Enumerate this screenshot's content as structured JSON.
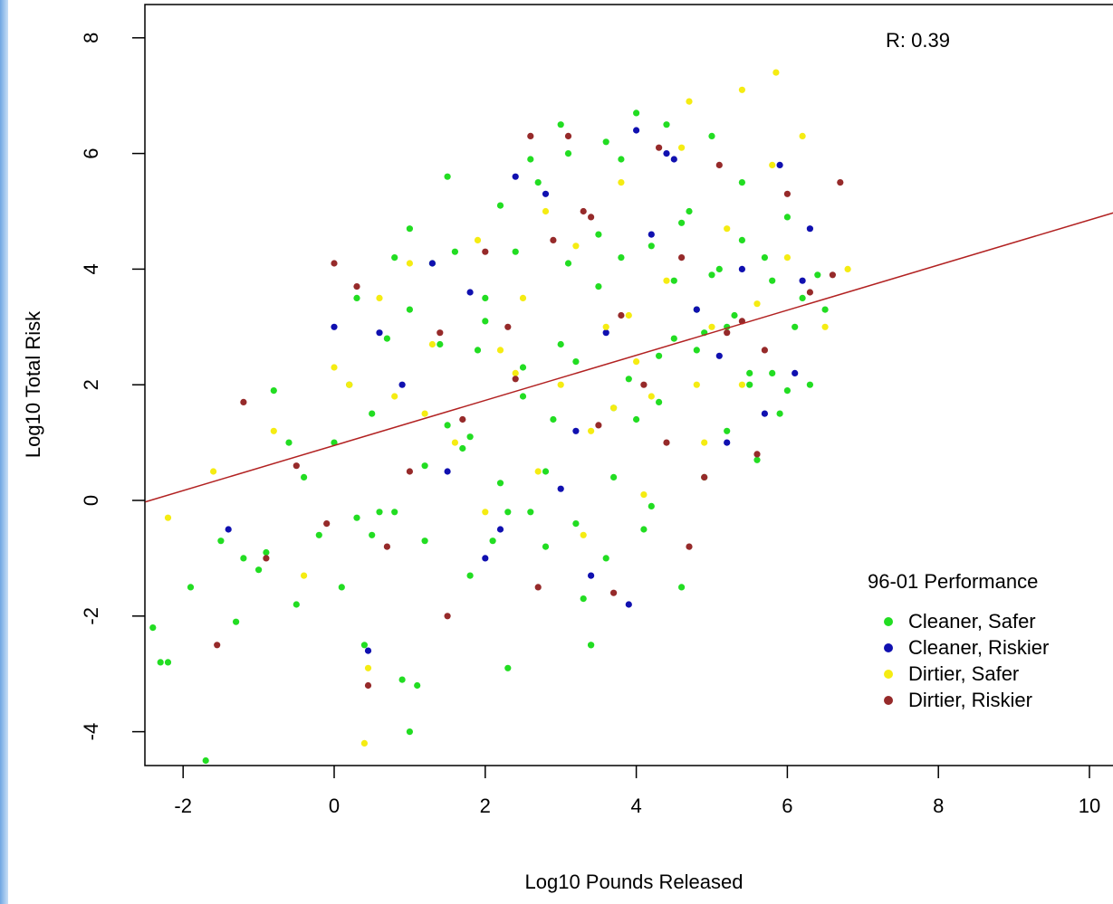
{
  "chart_data": {
    "type": "scatter",
    "xlabel": "Log10 Pounds Released",
    "ylabel": "Log10 Total Risk",
    "xlim": [
      -2.5,
      10.5
    ],
    "ylim": [
      -4.5,
      8.5
    ],
    "x_ticks": [
      -2,
      0,
      2,
      4,
      6,
      8,
      10
    ],
    "y_ticks": [
      -4,
      -2,
      0,
      2,
      4,
      6,
      8
    ],
    "annotation": "R:  0.39",
    "regression_line": {
      "intercept": 0.95,
      "slope": 0.39
    },
    "legend": {
      "title": "96-01 Performance",
      "placement": "bottom-right",
      "entries": [
        {
          "name": "Cleaner, Safer",
          "color": "#22dd22"
        },
        {
          "name": "Cleaner, Riskier",
          "color": "#1010b0"
        },
        {
          "name": "Dirtier, Safer",
          "color": "#f5ec12"
        },
        {
          "name": "Dirtier, Riskier",
          "color": "#962a2a"
        }
      ]
    },
    "series": [
      {
        "name": "Cleaner, Safer",
        "color": "#22dd22",
        "x": [
          -2.4,
          -2.3,
          -2.2,
          -1.9,
          -1.7,
          -1.5,
          -1.3,
          -1.0,
          -0.8,
          -0.6,
          -0.4,
          -0.2,
          0.0,
          0.1,
          0.2,
          0.3,
          0.4,
          0.5,
          0.6,
          0.7,
          0.8,
          0.9,
          1.0,
          1.1,
          1.2,
          1.3,
          1.4,
          1.5,
          1.6,
          1.7,
          1.8,
          1.9,
          2.0,
          2.1,
          2.2,
          2.3,
          2.4,
          2.5,
          2.6,
          2.7,
          2.8,
          2.9,
          3.0,
          3.1,
          3.2,
          3.3,
          3.4,
          3.5,
          3.6,
          3.7,
          3.8,
          3.9,
          4.0,
          4.1,
          4.2,
          4.3,
          4.4,
          4.5,
          4.6,
          4.7,
          4.8,
          4.9,
          5.0,
          5.1,
          5.2,
          5.3,
          5.4,
          5.5,
          5.6,
          5.7,
          5.8,
          5.9,
          6.0,
          6.1,
          6.2,
          6.3,
          6.4,
          6.5,
          0.3,
          1.0,
          1.5,
          2.0,
          2.5,
          3.0,
          3.5,
          4.0,
          4.5,
          5.0,
          5.5,
          6.0,
          1.2,
          2.2,
          3.2,
          4.2,
          5.2,
          0.8,
          1.8,
          2.8,
          3.8,
          4.8,
          5.8,
          2.6,
          3.6,
          4.6,
          1.0,
          3.4,
          0.5,
          -1.2,
          -0.9,
          -0.5,
          2.3,
          3.1,
          4.3,
          5.4,
          3.7,
          4.9
        ],
        "y": [
          -2.2,
          -2.8,
          -2.8,
          -1.5,
          -4.5,
          -0.7,
          -2.1,
          -1.2,
          1.9,
          1.0,
          0.4,
          -0.6,
          1.0,
          -1.5,
          2.0,
          3.5,
          -2.5,
          1.5,
          -0.2,
          2.8,
          4.2,
          -3.1,
          3.3,
          -3.2,
          -0.7,
          4.1,
          2.7,
          5.6,
          4.3,
          0.9,
          -1.3,
          2.6,
          3.5,
          -0.7,
          5.1,
          -2.9,
          4.3,
          2.3,
          -0.2,
          5.5,
          -0.8,
          1.4,
          6.5,
          4.1,
          -0.4,
          -1.7,
          -2.5,
          3.7,
          6.2,
          0.4,
          5.9,
          2.1,
          6.7,
          -0.5,
          4.4,
          1.7,
          6.5,
          3.8,
          -1.5,
          5.0,
          2.6,
          0.4,
          6.3,
          4.0,
          1.2,
          3.2,
          5.5,
          2.0,
          0.7,
          4.2,
          3.8,
          1.5,
          4.9,
          3.0,
          3.5,
          2.0,
          3.9,
          3.3,
          -0.3,
          4.7,
          1.3,
          3.1,
          1.8,
          2.7,
          4.6,
          1.4,
          2.8,
          3.9,
          2.2,
          1.9,
          0.6,
          0.3,
          2.4,
          -0.1,
          3.0,
          -0.2,
          1.1,
          0.5,
          4.2,
          3.3,
          2.2,
          5.9,
          -1.0,
          4.8,
          -4.0,
          -2.5,
          -0.6,
          -1.0,
          -0.9,
          -1.8,
          -0.2,
          6.0,
          2.5,
          4.5,
          1.6,
          2.9
        ]
      },
      {
        "name": "Cleaner, Riskier",
        "color": "#1010b0",
        "x": [
          -1.4,
          0.0,
          0.45,
          0.6,
          0.9,
          1.3,
          1.8,
          2.0,
          2.4,
          2.8,
          3.2,
          3.6,
          3.9,
          4.0,
          4.2,
          4.5,
          4.8,
          5.1,
          5.4,
          5.7,
          5.9,
          6.1,
          6.3,
          4.4,
          3.0,
          2.2,
          1.5,
          3.4,
          5.2,
          6.2
        ],
        "y": [
          -0.5,
          3.0,
          -2.6,
          2.9,
          2.0,
          4.1,
          3.6,
          -1.0,
          5.6,
          5.3,
          1.2,
          2.9,
          -1.8,
          6.4,
          4.6,
          5.9,
          3.3,
          2.5,
          4.0,
          1.5,
          5.8,
          2.2,
          4.7,
          6.0,
          0.2,
          -0.5,
          0.5,
          -1.3,
          1.0,
          3.8
        ]
      },
      {
        "name": "Dirtier, Safer",
        "color": "#f5ec12",
        "x": [
          -2.2,
          -1.6,
          -0.8,
          -0.4,
          0.0,
          0.2,
          0.4,
          0.6,
          0.8,
          1.0,
          1.3,
          1.6,
          1.9,
          2.2,
          2.5,
          2.8,
          3.0,
          3.2,
          3.4,
          3.6,
          3.8,
          4.0,
          4.2,
          4.4,
          4.6,
          4.8,
          5.0,
          5.2,
          5.4,
          5.6,
          5.8,
          6.0,
          6.2,
          6.5,
          6.8,
          5.85,
          5.4,
          4.7,
          3.9,
          2.7,
          2.0,
          1.2,
          0.45,
          3.3,
          4.1,
          4.9,
          2.4,
          3.7
        ],
        "y": [
          -0.3,
          0.5,
          1.2,
          -1.3,
          2.3,
          2.0,
          -4.2,
          3.5,
          1.8,
          4.1,
          2.7,
          1.0,
          4.5,
          2.6,
          3.5,
          5.0,
          2.0,
          4.4,
          1.2,
          3.0,
          5.5,
          2.4,
          1.8,
          3.8,
          6.1,
          2.0,
          3.0,
          4.7,
          2.0,
          3.4,
          5.8,
          4.2,
          6.3,
          3.0,
          4.0,
          7.4,
          7.1,
          6.9,
          3.2,
          0.5,
          -0.2,
          1.5,
          -2.9,
          -0.6,
          0.1,
          1.0,
          2.2,
          1.6
        ]
      },
      {
        "name": "Dirtier, Riskier",
        "color": "#962a2a",
        "x": [
          -1.55,
          -1.2,
          -0.9,
          -0.5,
          -0.1,
          0.0,
          0.3,
          0.45,
          0.7,
          1.0,
          1.4,
          1.7,
          2.0,
          2.3,
          2.6,
          2.9,
          3.1,
          3.3,
          3.5,
          3.8,
          4.1,
          4.3,
          4.6,
          4.9,
          5.1,
          5.4,
          5.7,
          6.0,
          6.3,
          6.6,
          6.7,
          2.7,
          3.7,
          4.7,
          5.6,
          1.5,
          2.4,
          3.4,
          4.4,
          5.2
        ],
        "y": [
          -2.5,
          1.7,
          -1.0,
          0.6,
          -0.4,
          4.1,
          3.7,
          -3.2,
          -0.8,
          0.5,
          2.9,
          1.4,
          4.3,
          3.0,
          6.3,
          4.5,
          6.3,
          5.0,
          1.3,
          3.2,
          2.0,
          6.1,
          4.2,
          0.4,
          5.8,
          3.1,
          2.6,
          5.3,
          3.6,
          3.9,
          5.5,
          -1.5,
          -1.6,
          -0.8,
          0.8,
          -2.0,
          2.1,
          4.9,
          1.0,
          2.9
        ]
      }
    ]
  }
}
